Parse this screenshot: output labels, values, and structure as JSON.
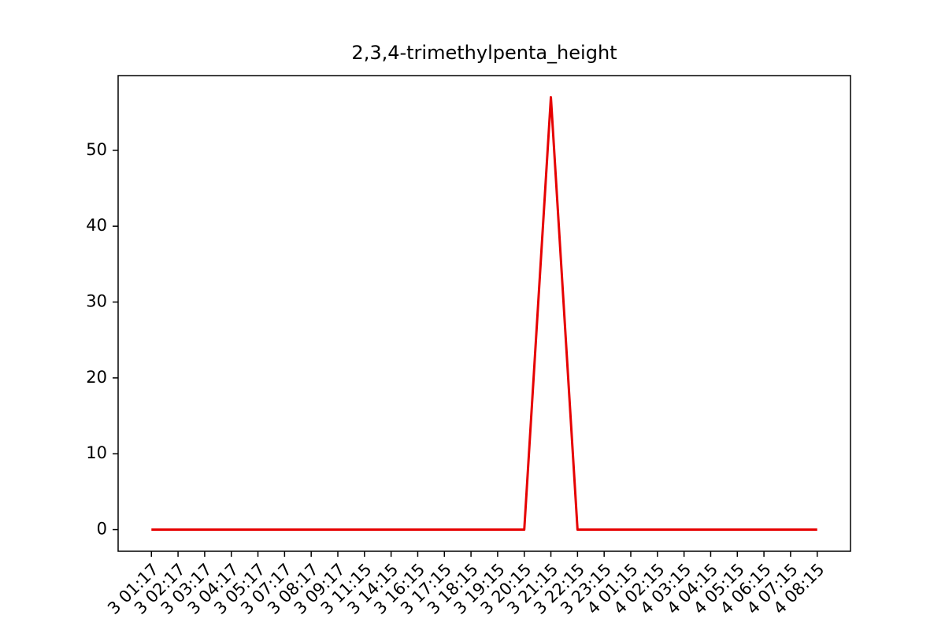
{
  "chart_data": {
    "type": "line",
    "title": "2,3,4-trimethylpenta_height",
    "categories": [
      "3 01:17",
      "3 02:17",
      "3 03:17",
      "3 04:17",
      "3 05:17",
      "3 07:17",
      "3 08:17",
      "3 09:17",
      "3 11:15",
      "3 14:15",
      "3 16:15",
      "3 17:15",
      "3 18:15",
      "3 19:15",
      "3 20:15",
      "3 21:15",
      "3 22:15",
      "3 23:15",
      "4 01:15",
      "4 02:15",
      "4 03:15",
      "4 04:15",
      "4 05:15",
      "4 06:15",
      "4 07:15",
      "4 08:15"
    ],
    "values": [
      0,
      0,
      0,
      0,
      0,
      0,
      0,
      0,
      0,
      0,
      0,
      0,
      0,
      0,
      0,
      57,
      0,
      0,
      0,
      0,
      0,
      0,
      0,
      0,
      0,
      0
    ],
    "color": "#e60000",
    "ylim": [
      -2.85,
      59.85
    ],
    "yticks": [
      0,
      10,
      20,
      30,
      40,
      50
    ],
    "grid": false
  }
}
